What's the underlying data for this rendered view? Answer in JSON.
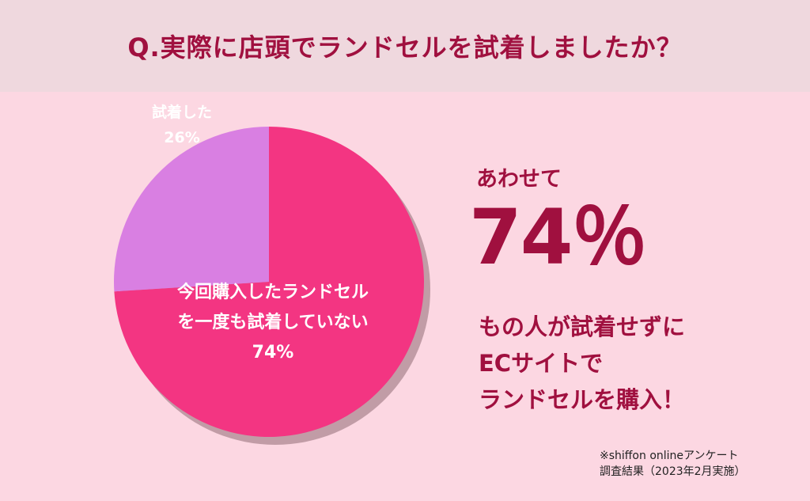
{
  "header": {
    "question": "Q.実際に店頭でランドセルを試着しましたか？"
  },
  "chart_data": {
    "type": "pie",
    "slices": [
      {
        "label_lines": [
          "試着した",
          "26%"
        ],
        "value": 26,
        "color": "#d97fe2"
      },
      {
        "label_lines": [
          "今回購入したランドセル",
          "を一度も試着していない",
          "74%"
        ],
        "value": 74,
        "color": "#f33582"
      }
    ]
  },
  "summary": {
    "lead": "あわせて",
    "percent": "74％",
    "message_lines": [
      "もの人が試着せずに",
      "ECサイトで",
      "ランドセルを購入！"
    ]
  },
  "note": {
    "lines": [
      "※shiffon onlineアンケート",
      "調査結果（2023年2月実施）"
    ]
  }
}
